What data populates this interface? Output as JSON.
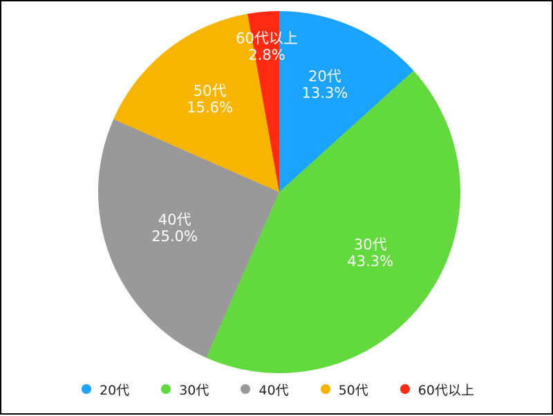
{
  "chart_data": {
    "type": "pie",
    "categories": [
      "20代",
      "30代",
      "40代",
      "50代",
      "60代以上"
    ],
    "values": [
      13.3,
      43.3,
      25.0,
      15.6,
      2.8
    ],
    "value_labels": [
      "13.3%",
      "43.3%",
      "25.0%",
      "15.6%",
      "2.8%"
    ],
    "colors": [
      "#1aa3ff",
      "#62d93c",
      "#999999",
      "#f7b500",
      "#ff2a12"
    ],
    "start": "12 o'clock",
    "direction": "clockwise",
    "legend_position": "bottom",
    "title": "",
    "xlabel": "",
    "ylabel": ""
  }
}
